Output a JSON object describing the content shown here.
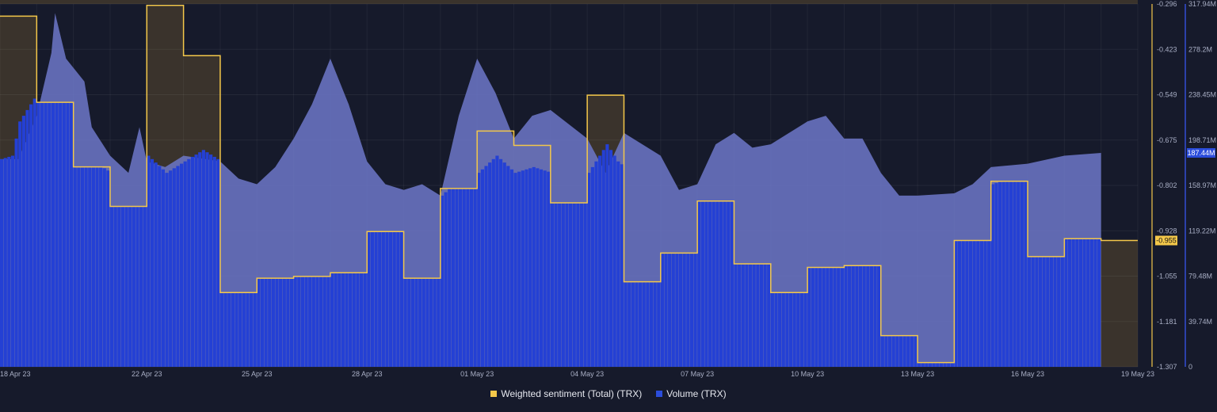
{
  "chart_data": {
    "type": "area+step",
    "x_ticks": [
      "18 Apr 23",
      "22 Apr 23",
      "25 Apr 23",
      "28 Apr 23",
      "01 May 23",
      "04 May 23",
      "07 May 23",
      "10 May 23",
      "13 May 23",
      "16 May 23",
      "19 May 23"
    ],
    "x_tick_days": [
      0,
      4,
      7,
      10,
      13,
      16,
      19,
      22,
      25,
      28,
      31
    ],
    "sentiment_axis": {
      "ticks": [
        "-0.296",
        "-0.423",
        "-0.549",
        "-0.675",
        "-0.802",
        "-0.928",
        "-1.055",
        "-1.181",
        "-1.307"
      ],
      "min": -1.307,
      "max": -0.296,
      "current_label": "-0.955",
      "current_value": -0.955
    },
    "volume_axis": {
      "ticks": [
        "317.94M",
        "278.2M",
        "238.45M",
        "198.71M",
        "158.97M",
        "119.22M",
        "79.48M",
        "39.74M",
        "0"
      ],
      "min": 0,
      "max": 317.94,
      "current_label": "187.44M",
      "current_value": 187.44
    },
    "sentiment_steps": [
      {
        "d": 0,
        "v": -0.33
      },
      {
        "d": 1,
        "v": -0.57
      },
      {
        "d": 2,
        "v": -0.75
      },
      {
        "d": 3,
        "v": -0.86
      },
      {
        "d": 4,
        "v": -0.3
      },
      {
        "d": 5,
        "v": -0.44
      },
      {
        "d": 6,
        "v": -1.1
      },
      {
        "d": 7,
        "v": -1.06
      },
      {
        "d": 8,
        "v": -1.055
      },
      {
        "d": 9,
        "v": -1.045
      },
      {
        "d": 10,
        "v": -0.93
      },
      {
        "d": 11,
        "v": -1.06
      },
      {
        "d": 12,
        "v": -0.81
      },
      {
        "d": 13,
        "v": -0.65
      },
      {
        "d": 14,
        "v": -0.69
      },
      {
        "d": 15,
        "v": -0.85
      },
      {
        "d": 16,
        "v": -0.55
      },
      {
        "d": 17,
        "v": -1.07
      },
      {
        "d": 18,
        "v": -0.99
      },
      {
        "d": 19,
        "v": -0.845
      },
      {
        "d": 20,
        "v": -1.02
      },
      {
        "d": 21,
        "v": -1.1
      },
      {
        "d": 22,
        "v": -1.03
      },
      {
        "d": 23,
        "v": -1.025
      },
      {
        "d": 24,
        "v": -1.22
      },
      {
        "d": 25,
        "v": -1.295
      },
      {
        "d": 26,
        "v": -0.955
      },
      {
        "d": 27,
        "v": -0.79
      },
      {
        "d": 28,
        "v": -1.0
      },
      {
        "d": 29,
        "v": -0.95
      },
      {
        "d": 30,
        "v": -0.955
      }
    ],
    "volume_points": [
      [
        0,
        182
      ],
      [
        0.5,
        182
      ],
      [
        1,
        220
      ],
      [
        1.4,
        275
      ],
      [
        1.5,
        310
      ],
      [
        1.8,
        270
      ],
      [
        2.3,
        250
      ],
      [
        2.5,
        210
      ],
      [
        3,
        185
      ],
      [
        3.5,
        170
      ],
      [
        3.8,
        210
      ],
      [
        4,
        180
      ],
      [
        4.5,
        175
      ],
      [
        5,
        185
      ],
      [
        6,
        180
      ],
      [
        6.5,
        165
      ],
      [
        7,
        160
      ],
      [
        7.5,
        175
      ],
      [
        8,
        200
      ],
      [
        8.5,
        230
      ],
      [
        9,
        270
      ],
      [
        9.5,
        230
      ],
      [
        10,
        180
      ],
      [
        10.5,
        160
      ],
      [
        11,
        155
      ],
      [
        11.5,
        160
      ],
      [
        12,
        150
      ],
      [
        12.5,
        220
      ],
      [
        13,
        270
      ],
      [
        13.5,
        240
      ],
      [
        14,
        200
      ],
      [
        14.5,
        220
      ],
      [
        15,
        225
      ],
      [
        16,
        200
      ],
      [
        16.5,
        170
      ],
      [
        17,
        205
      ],
      [
        18,
        185
      ],
      [
        18.5,
        155
      ],
      [
        19,
        160
      ],
      [
        19.5,
        195
      ],
      [
        20,
        205
      ],
      [
        20.5,
        192
      ],
      [
        21,
        195
      ],
      [
        22,
        215
      ],
      [
        22.5,
        220
      ],
      [
        23,
        200
      ],
      [
        23.5,
        200
      ],
      [
        24,
        170
      ],
      [
        24.5,
        150
      ],
      [
        25,
        150
      ],
      [
        26,
        152
      ],
      [
        26.5,
        160
      ],
      [
        27,
        175
      ],
      [
        28,
        178
      ],
      [
        29,
        185
      ],
      [
        30,
        187.44
      ]
    ],
    "volume_bars": [
      [
        0,
        182
      ],
      [
        0.3,
        185
      ],
      [
        0.5,
        215
      ],
      [
        1,
        240
      ],
      [
        1.5,
        255
      ],
      [
        2,
        240
      ],
      [
        2.3,
        205
      ],
      [
        2.6,
        178
      ],
      [
        3,
        170
      ],
      [
        3.5,
        180
      ],
      [
        3.8,
        175
      ],
      [
        4,
        185
      ],
      [
        4.5,
        170
      ],
      [
        5,
        180
      ],
      [
        5.5,
        190
      ],
      [
        6,
        180
      ],
      [
        6.3,
        170
      ],
      [
        6.6,
        165
      ],
      [
        7,
        160
      ],
      [
        7.5,
        170
      ],
      [
        8,
        165
      ],
      [
        8.5,
        155
      ],
      [
        9,
        160
      ],
      [
        9.5,
        162
      ],
      [
        10,
        150
      ],
      [
        10.5,
        155
      ],
      [
        11,
        158
      ],
      [
        11.5,
        160
      ],
      [
        12,
        150
      ],
      [
        12.5,
        165
      ],
      [
        13,
        170
      ],
      [
        13.5,
        185
      ],
      [
        14,
        170
      ],
      [
        14.5,
        175
      ],
      [
        15,
        170
      ],
      [
        15.5,
        165
      ],
      [
        16,
        170
      ],
      [
        16.5,
        195
      ],
      [
        16.8,
        180
      ],
      [
        17,
        175
      ],
      [
        17.5,
        170
      ],
      [
        18,
        160
      ],
      [
        18.5,
        155
      ],
      [
        19,
        158
      ],
      [
        19.5,
        160
      ],
      [
        20,
        155
      ],
      [
        20.5,
        152
      ],
      [
        21,
        158
      ],
      [
        21.5,
        160
      ],
      [
        22,
        162
      ],
      [
        22.5,
        160
      ],
      [
        23,
        158
      ],
      [
        23.5,
        155
      ],
      [
        24,
        152
      ],
      [
        24.5,
        150
      ],
      [
        25,
        150
      ],
      [
        25.5,
        152
      ],
      [
        26,
        155
      ],
      [
        26.5,
        158
      ],
      [
        27,
        160
      ],
      [
        27.5,
        165
      ],
      [
        28,
        170
      ],
      [
        28.5,
        175
      ],
      [
        29,
        180
      ],
      [
        29.5,
        182
      ],
      [
        30,
        187.44
      ]
    ]
  },
  "legend": {
    "sentiment_label": "Weighted sentiment (Total) (TRX)",
    "volume_label": "Volume (TRX)",
    "sentiment_color": "#f4c84a",
    "volume_color": "#2b4ddb"
  }
}
